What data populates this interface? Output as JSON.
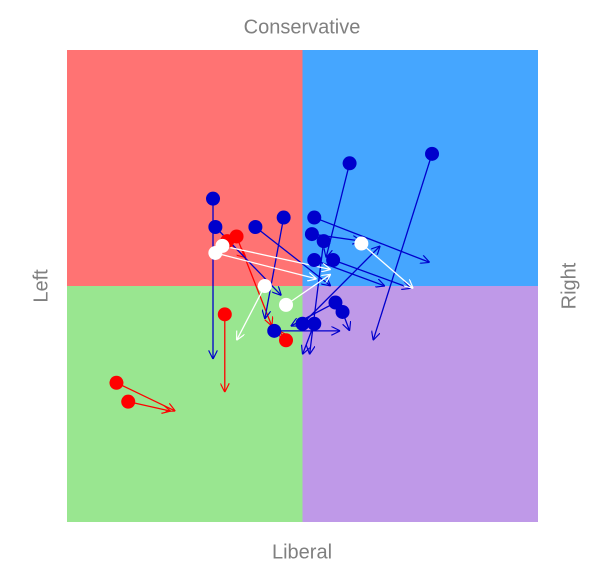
{
  "chart_data": {
    "type": "arrow",
    "top_label": "Conservative",
    "bottom_label": "Liberal",
    "left_label": "Left",
    "right_label": "Right",
    "xlim": [
      -1,
      1
    ],
    "ylim": [
      -1,
      1
    ],
    "quadrant_colors": {
      "top_left": "#ff7373",
      "top_right": "#45a6ff",
      "bottom_left": "#99e690",
      "bottom_right": "#bf99e8"
    },
    "series": [
      {
        "color": "#ff0000",
        "x": [
          -0.79,
          -0.74,
          -0.33,
          -0.28,
          -0.07,
          -0.32
        ],
        "y": [
          -0.41,
          -0.49,
          -0.12,
          0.21,
          -0.23,
          0.19
        ],
        "x_end": [
          -0.54,
          -0.56,
          -0.33,
          -0.13,
          -0.1,
          -0.24
        ],
        "y_end": [
          -0.53,
          -0.53,
          -0.45,
          -0.17,
          -0.19,
          0.12
        ]
      },
      {
        "color": "#0000cc",
        "x": [
          0.2,
          0.55,
          -0.38,
          -0.37,
          -0.2,
          -0.08,
          0.05,
          0.09,
          0.05,
          0.13,
          0.14,
          0.17,
          -0.12,
          0.0,
          0.05,
          0.04
        ],
        "y": [
          0.52,
          0.56,
          0.37,
          0.25,
          0.25,
          0.29,
          0.29,
          0.19,
          0.11,
          0.11,
          -0.07,
          -0.11,
          -0.19,
          -0.16,
          -0.16,
          0.22
        ],
        "x_end": [
          0.1,
          0.3,
          -0.38,
          -0.09,
          0.12,
          -0.16,
          0.54,
          0.03,
          0.35,
          0.46,
          -0.05,
          0.2,
          0.16,
          0.33,
          0.0,
          0.25
        ],
        "y_end": [
          0.12,
          -0.23,
          -0.31,
          -0.04,
          0.0,
          -0.14,
          0.1,
          -0.29,
          0.0,
          -0.01,
          -0.17,
          -0.19,
          -0.19,
          0.17,
          -0.29,
          0.19
        ]
      },
      {
        "color": "#ffffff",
        "x": [
          0.25,
          -0.37,
          -0.34,
          -0.16,
          -0.07
        ],
        "y": [
          0.18,
          0.14,
          0.17,
          0.0,
          -0.08
        ],
        "x_end": [
          0.47,
          0.06,
          0.12,
          -0.28,
          0.12
        ],
        "y_end": [
          -0.01,
          0.03,
          0.07,
          -0.23,
          0.05
        ]
      }
    ]
  }
}
